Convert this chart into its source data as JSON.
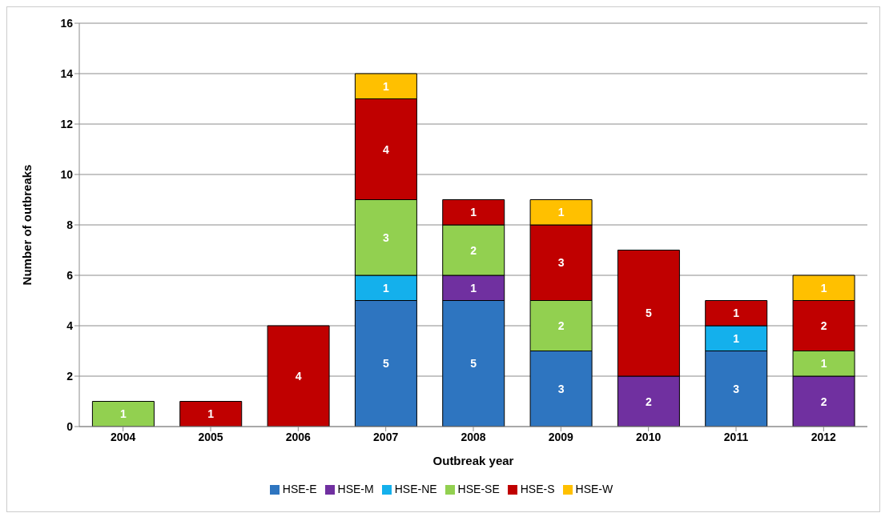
{
  "chart_data": {
    "type": "bar",
    "stacked": true,
    "xlabel": "Outbreak year",
    "ylabel": "Number of outbreaks",
    "categories": [
      "2004",
      "2005",
      "2006",
      "2007",
      "2008",
      "2009",
      "2010",
      "2011",
      "2012"
    ],
    "series": [
      {
        "name": "HSE-E",
        "color": "#2e75c0",
        "values": [
          null,
          null,
          null,
          5,
          5,
          3,
          null,
          3,
          null
        ]
      },
      {
        "name": "HSE-M",
        "color": "#7030a0",
        "values": [
          null,
          null,
          null,
          null,
          1,
          null,
          2,
          null,
          2
        ]
      },
      {
        "name": "HSE-NE",
        "color": "#14b0ec",
        "values": [
          null,
          null,
          null,
          1,
          null,
          null,
          null,
          1,
          null
        ]
      },
      {
        "name": "HSE-SE",
        "color": "#92d050",
        "values": [
          1,
          null,
          null,
          3,
          2,
          2,
          null,
          null,
          1
        ]
      },
      {
        "name": "HSE-S",
        "color": "#c00000",
        "values": [
          null,
          1,
          4,
          4,
          1,
          3,
          5,
          1,
          2
        ]
      },
      {
        "name": "HSE-W",
        "color": "#ffc000",
        "values": [
          null,
          null,
          null,
          1,
          null,
          1,
          null,
          null,
          1
        ]
      }
    ],
    "ylim": [
      0,
      16
    ],
    "yticks": [
      0,
      2,
      4,
      6,
      8,
      10,
      12,
      14,
      16
    ],
    "grid": "y",
    "legend": "bottom",
    "data_labels": true
  }
}
